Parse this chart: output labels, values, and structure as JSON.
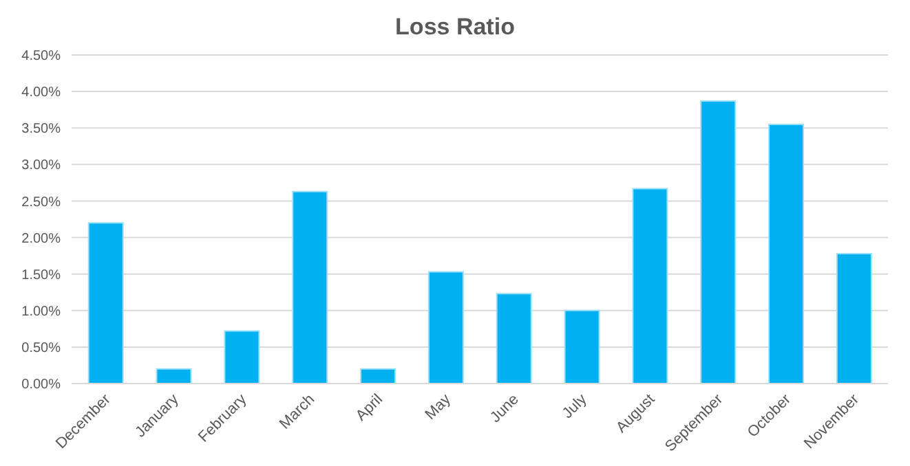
{
  "chart_data": {
    "type": "bar",
    "title": "Loss Ratio",
    "categories": [
      "December",
      "January",
      "February",
      "March",
      "April",
      "May",
      "June",
      "July",
      "August",
      "September",
      "October",
      "November"
    ],
    "values": [
      2.2,
      0.2,
      0.72,
      2.63,
      0.2,
      1.53,
      1.23,
      1.0,
      2.67,
      3.87,
      3.55,
      1.78
    ],
    "color": "#00b0f0",
    "ylim": [
      0,
      4.5
    ],
    "yticks": [
      {
        "value": 0,
        "label": "0.00%"
      },
      {
        "value": 0.5,
        "label": "0.50%"
      },
      {
        "value": 1,
        "label": "1.00%"
      },
      {
        "value": 1.5,
        "label": "1.50%"
      },
      {
        "value": 2,
        "label": "2.00%"
      },
      {
        "value": 2.5,
        "label": "2.50%"
      },
      {
        "value": 3,
        "label": "3.00%"
      },
      {
        "value": 3.5,
        "label": "3.50%"
      },
      {
        "value": 4,
        "label": "4.00%"
      },
      {
        "value": 4.5,
        "label": "4.50%"
      }
    ],
    "grid": "y"
  }
}
